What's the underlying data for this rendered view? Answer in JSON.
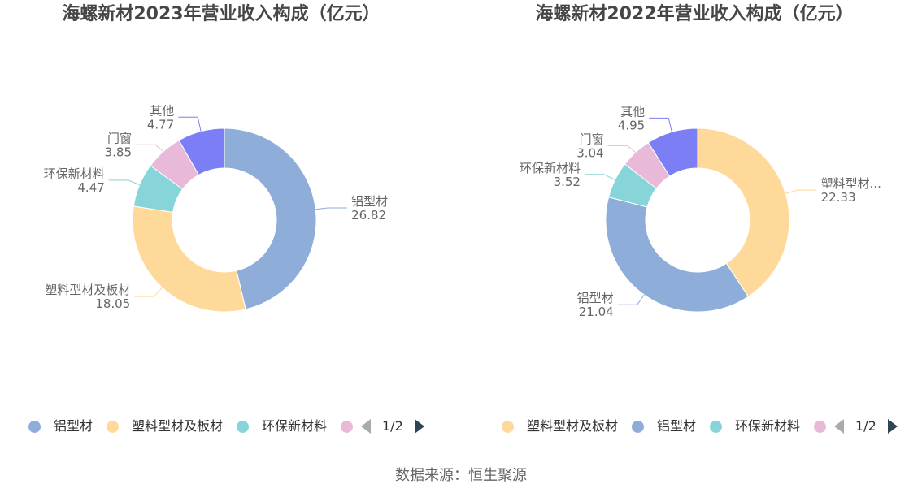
{
  "source": "数据来源：恒生聚源",
  "chart_data": [
    {
      "type": "pie",
      "donut": true,
      "title": "海螺新材2023年营业收入构成（亿元）",
      "categories": [
        "铝型材",
        "塑料型材及板材",
        "环保新材料",
        "门窗",
        "其他"
      ],
      "values": [
        26.82,
        18.05,
        4.47,
        3.85,
        4.77
      ],
      "slice_labels": [
        "铝型材",
        "塑料型材及板材",
        "环保新材料",
        "门窗",
        "其他"
      ],
      "colors": [
        "#8fadd9",
        "#ffd99a",
        "#87d5d8",
        "#e9b9d9",
        "#7c7ef5"
      ],
      "legend": {
        "placement": "bottom",
        "items": [
          {
            "label": "铝型材",
            "color": "#8fadd9"
          },
          {
            "label": "塑料型材及板材",
            "color": "#ffd99a"
          },
          {
            "label": "环保新材料",
            "color": "#87d5d8"
          },
          {
            "label": "",
            "color": "#e9b9d9"
          }
        ],
        "pager": {
          "text": "1/2",
          "prev_icon": "triangle-left-icon",
          "next_icon": "triangle-right-icon"
        }
      }
    },
    {
      "type": "pie",
      "donut": true,
      "title": "海螺新材2022年营业收入构成（亿元）",
      "categories": [
        "塑料型材及板材",
        "铝型材",
        "环保新材料",
        "门窗",
        "其他"
      ],
      "values": [
        22.33,
        21.04,
        3.52,
        3.04,
        4.95
      ],
      "slice_labels": [
        "塑料型材...",
        "铝型材",
        "环保新材料",
        "门窗",
        "其他"
      ],
      "colors": [
        "#ffd99a",
        "#8fadd9",
        "#87d5d8",
        "#e9b9d9",
        "#7c7ef5"
      ],
      "legend": {
        "placement": "bottom",
        "items": [
          {
            "label": "塑料型材及板材",
            "color": "#ffd99a"
          },
          {
            "label": "铝型材",
            "color": "#8fadd9"
          },
          {
            "label": "环保新材料",
            "color": "#87d5d8"
          },
          {
            "label": "",
            "color": "#e9b9d9"
          }
        ],
        "pager": {
          "text": "1/2",
          "prev_icon": "triangle-left-icon",
          "next_icon": "triangle-right-icon"
        }
      }
    }
  ]
}
